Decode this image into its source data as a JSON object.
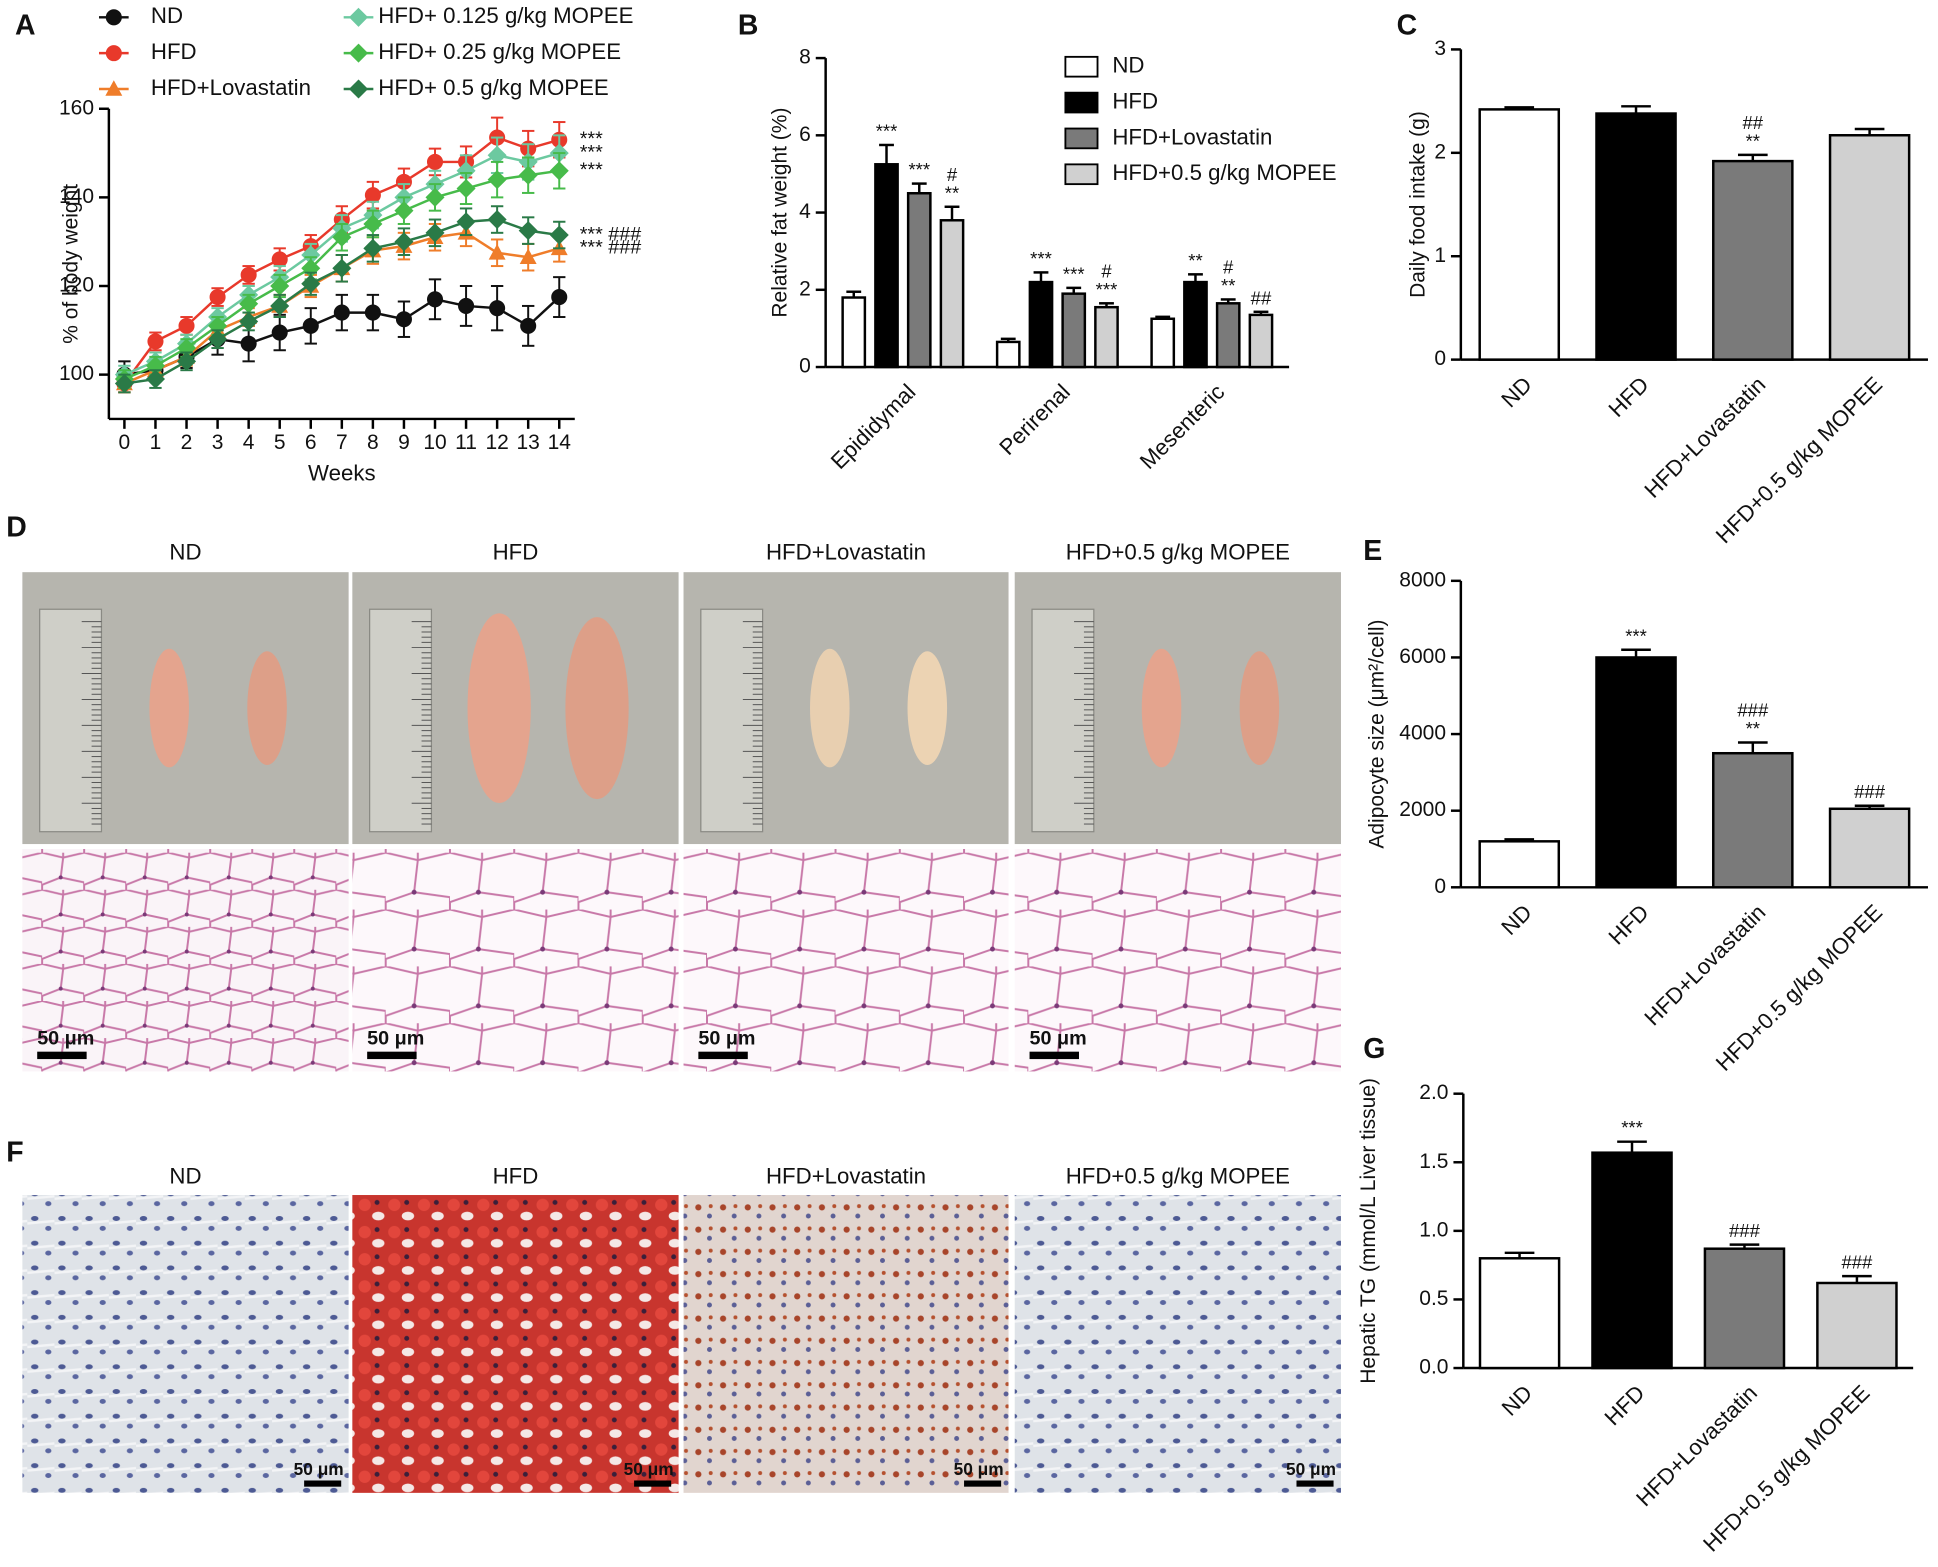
{
  "chart_data": [
    {
      "type": "line",
      "panel_label": "A",
      "x_label": "Weeks",
      "y_label": "% of body weight",
      "x": [
        0,
        1,
        2,
        3,
        4,
        5,
        6,
        7,
        8,
        9,
        10,
        11,
        12,
        13,
        14
      ],
      "xlim": [
        -0.5,
        14.5
      ],
      "xticks": [
        0,
        1,
        2,
        3,
        4,
        5,
        6,
        7,
        8,
        9,
        10,
        11,
        12,
        13,
        14
      ],
      "ylim": [
        90,
        160
      ],
      "yticks": [
        100,
        120,
        140,
        160
      ],
      "series": [
        {
          "name": "ND",
          "color": "#111111",
          "marker": "circle",
          "values": [
            100,
            101,
            104,
            108,
            107,
            109.5,
            111,
            114,
            114,
            112.5,
            117,
            115.5,
            115,
            111,
            117.5
          ],
          "errors": [
            3,
            2.5,
            2.5,
            3.5,
            4,
            4,
            4,
            4,
            4,
            4,
            4.5,
            4.5,
            5,
            4.5,
            4.5
          ]
        },
        {
          "name": "HFD",
          "color": "#e8392b",
          "marker": "circle",
          "annotation": "***",
          "values": [
            98,
            107.5,
            111,
            117.5,
            122.5,
            126,
            129,
            135,
            140.5,
            143.5,
            148,
            148,
            153.5,
            151,
            153
          ],
          "errors": [
            2,
            2,
            2,
            2,
            2,
            2.5,
            2.5,
            3,
            3,
            3,
            3,
            3.5,
            4.5,
            4,
            4
          ]
        },
        {
          "name": "HFD+Lovastatin",
          "color": "#ef7d2a",
          "marker": "triangle",
          "annotation": "*** ###",
          "values": [
            98,
            101,
            104,
            110,
            113,
            115.5,
            120,
            124,
            128,
            129,
            131,
            132,
            127.5,
            126.5,
            128.5
          ],
          "errors": [
            2,
            2,
            2,
            2,
            2,
            2.5,
            2.5,
            3,
            3,
            3,
            3,
            3,
            3,
            3,
            3
          ]
        },
        {
          "name": "HFD+ 0.125 g/kg MOPEE",
          "color": "#6cc9a0",
          "marker": "diamond",
          "annotation": "***",
          "values": [
            100,
            103,
            107,
            113,
            118,
            122,
            127,
            133,
            136,
            140,
            143,
            146,
            149.5,
            148,
            150
          ],
          "errors": [
            2,
            2,
            2,
            2,
            2,
            2.5,
            2.5,
            3,
            3,
            3,
            3,
            3.5,
            4,
            4,
            4
          ]
        },
        {
          "name": "HFD+ 0.25 g/kg MOPEE",
          "color": "#47bb4a",
          "marker": "diamond",
          "annotation": "***",
          "values": [
            99,
            102,
            106,
            111,
            116,
            120,
            124,
            131,
            134,
            137,
            140,
            142,
            144,
            145,
            146
          ],
          "errors": [
            2,
            2,
            2,
            2,
            2,
            2.5,
            2.5,
            3,
            3,
            3,
            3,
            3.5,
            4,
            4,
            4
          ]
        },
        {
          "name": "HFD+ 0.5 g/kg MOPEE",
          "color": "#2a7a47",
          "marker": "diamond",
          "annotation": "*** ###",
          "values": [
            98,
            99,
            103,
            108,
            112,
            115.5,
            120.5,
            124,
            128.5,
            130,
            132,
            134.5,
            135,
            132.5,
            131.5
          ],
          "errors": [
            2,
            2,
            2,
            2,
            2,
            2.5,
            2.5,
            3,
            3,
            3,
            3,
            3,
            3,
            3,
            3
          ]
        }
      ]
    },
    {
      "type": "bar",
      "panel_label": "B",
      "y_label": "Relative fat weight (%)",
      "categories": [
        "Epididymal",
        "Perirenal",
        "Mesenteric"
      ],
      "ylim": [
        0,
        8
      ],
      "yticks": [
        0,
        2,
        4,
        6,
        8
      ],
      "series": [
        {
          "name": "ND",
          "color": "#ffffff",
          "values": [
            1.8,
            0.65,
            1.25
          ],
          "errors": [
            0.15,
            0.08,
            0.05
          ]
        },
        {
          "name": "HFD",
          "color": "#000000",
          "values": [
            5.25,
            2.2,
            2.2
          ],
          "errors": [
            0.5,
            0.25,
            0.2
          ],
          "annotations": [
            [
              "***"
            ],
            [
              "***"
            ],
            [
              "**"
            ]
          ]
        },
        {
          "name": "HFD+Lovastatin",
          "color": "#7a7a7a",
          "values": [
            4.5,
            1.9,
            1.65
          ],
          "errors": [
            0.25,
            0.15,
            0.1
          ],
          "annotations": [
            [
              "***"
            ],
            [
              "***"
            ],
            [
              "#",
              "**"
            ]
          ]
        },
        {
          "name": "HFD+0.5 g/kg MOPEE",
          "color": "#d0d0d0",
          "values": [
            3.8,
            1.55,
            1.35
          ],
          "errors": [
            0.35,
            0.1,
            0.08
          ],
          "annotations": [
            [
              "#",
              "**"
            ],
            [
              "#",
              "***"
            ],
            [
              "##"
            ]
          ]
        }
      ]
    },
    {
      "type": "bar",
      "panel_label": "C",
      "y_label": "Daily food intake (g)",
      "categories": [
        "ND",
        "HFD",
        "HFD+Lovastatin",
        "HFD+0.5 g/kg MOPEE"
      ],
      "colors": [
        "#ffffff",
        "#000000",
        "#7a7a7a",
        "#d0d0d0"
      ],
      "values": [
        2.42,
        2.38,
        1.92,
        2.17
      ],
      "errors": [
        0.02,
        0.07,
        0.06,
        0.06
      ],
      "annotations": [
        null,
        null,
        [
          "##",
          "**"
        ],
        null
      ],
      "ylim": [
        0,
        3
      ],
      "yticks": [
        0,
        1,
        2,
        3
      ]
    },
    {
      "type": "bar",
      "panel_label": "E",
      "y_label": "Adipocyte size (μm²/cell)",
      "categories": [
        "ND",
        "HFD",
        "HFD+Lovastatin",
        "HFD+0.5 g/kg MOPEE"
      ],
      "colors": [
        "#ffffff",
        "#000000",
        "#7a7a7a",
        "#d0d0d0"
      ],
      "values": [
        1200,
        6000,
        3500,
        2050
      ],
      "errors": [
        50,
        200,
        280,
        80
      ],
      "annotations": [
        null,
        [
          "***"
        ],
        [
          "###",
          "**"
        ],
        [
          "###"
        ]
      ],
      "ylim": [
        0,
        8000
      ],
      "yticks": [
        0,
        2000,
        4000,
        6000,
        8000
      ]
    },
    {
      "type": "bar",
      "panel_label": "G",
      "y_label": "Hepatic TG (mmol/L Liver tissue)",
      "categories": [
        "ND",
        "HFD",
        "HFD+Lovastatin",
        "HFD+0.5 g/kg MOPEE"
      ],
      "colors": [
        "#ffffff",
        "#000000",
        "#7a7a7a",
        "#d0d0d0"
      ],
      "values": [
        0.8,
        1.57,
        0.87,
        0.62
      ],
      "errors": [
        0.04,
        0.08,
        0.03,
        0.05
      ],
      "annotations": [
        null,
        [
          "***"
        ],
        [
          "###"
        ],
        [
          "###"
        ]
      ],
      "ylim": [
        0,
        2.0
      ],
      "yticks": [
        {
          "value": 0,
          "label": "0.0"
        },
        {
          "value": 0.5,
          "label": "0.5"
        },
        {
          "value": 1,
          "label": "1.0"
        },
        {
          "value": 1.5,
          "label": "1.5"
        },
        {
          "value": 2,
          "label": "2.0"
        }
      ]
    }
  ],
  "photo_panels": [
    {
      "panel_label": "D",
      "titles": [
        "ND",
        "HFD",
        "HFD+Lovastatin",
        "HFD+0.5 g/kg MOPEE"
      ],
      "scale_bar": "50 μm"
    },
    {
      "panel_label": "F",
      "titles": [
        "ND",
        "HFD",
        "HFD+Lovastatin",
        "HFD+0.5 g/kg MOPEE"
      ],
      "scale_bar": "50 μm"
    }
  ]
}
